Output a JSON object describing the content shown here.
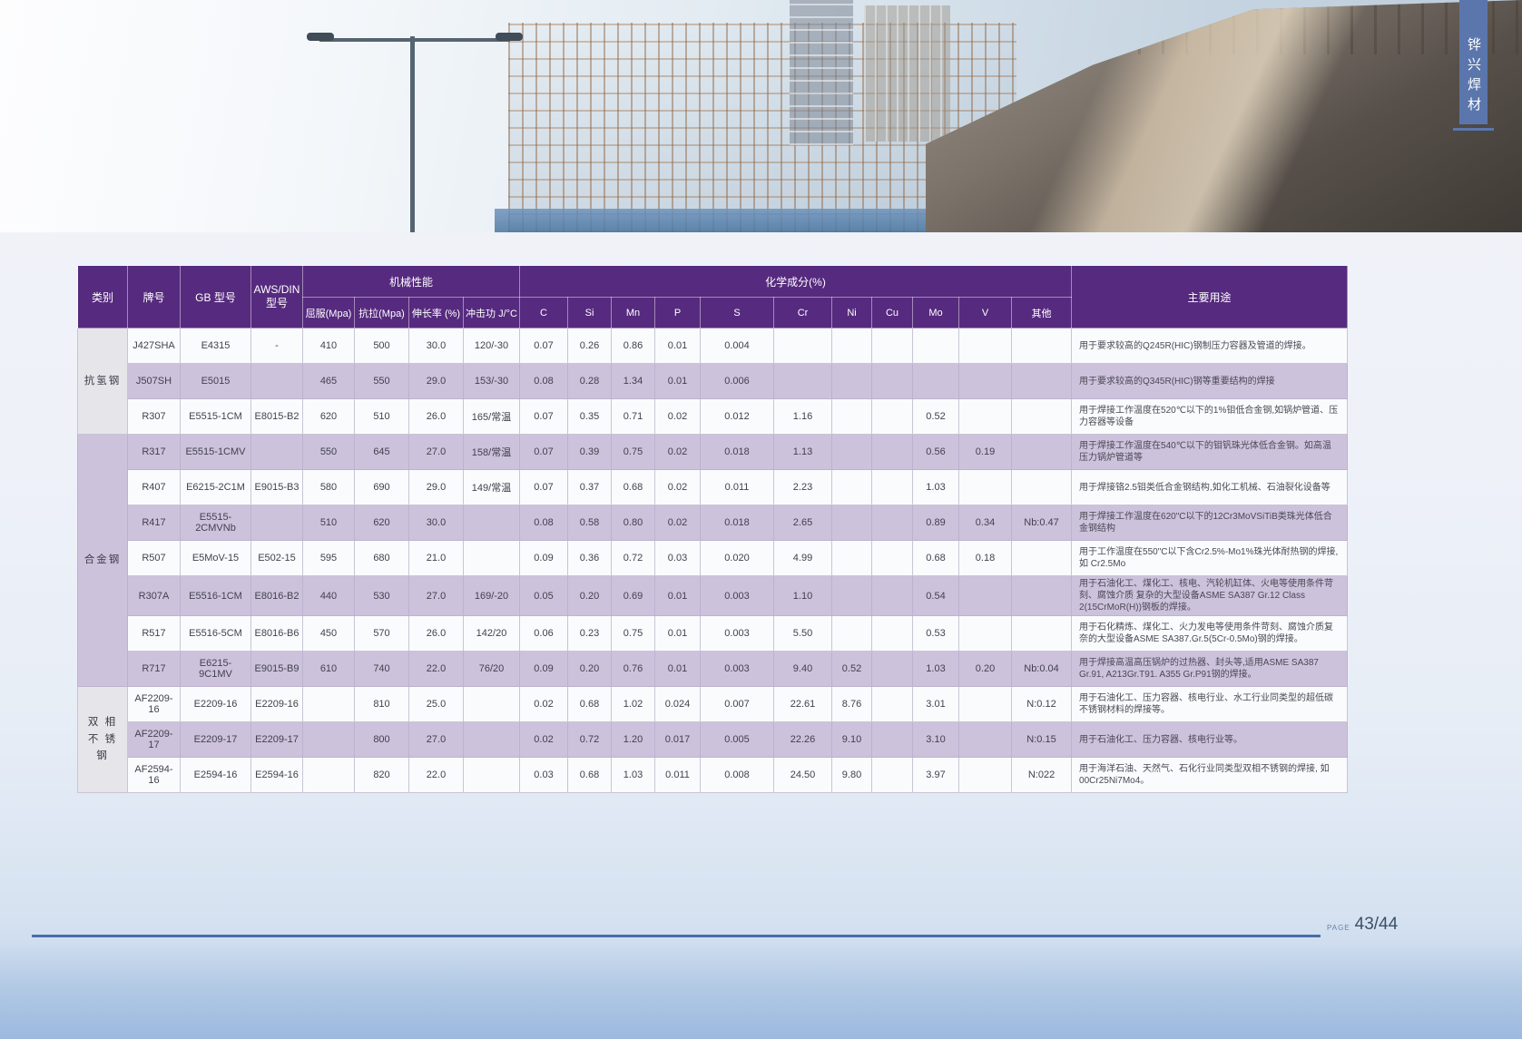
{
  "ribbon": {
    "text": "铧兴焊材"
  },
  "photo": {
    "description": "construction site with scaffolding, street lamp and concrete highway bridge"
  },
  "table": {
    "headers": {
      "category": "类别",
      "brand": "牌号",
      "gb_model": "GB 型号",
      "aws_din": "AWS/DIN\n型号",
      "mechanical": "机械性能",
      "chemical": "化学成分(%)",
      "usage": "主要用途",
      "mech_cols": [
        "屈服(Mpa)",
        "抗拉(Mpa)",
        "伸长率 (%)",
        "冲击功 J/°C"
      ],
      "chem_cols": [
        "C",
        "Si",
        "Mn",
        "P",
        "S",
        "Cr",
        "Ni",
        "Cu",
        "Mo",
        "V",
        "其他"
      ]
    },
    "groups": [
      {
        "category": "抗氢钢",
        "rows": [
          [
            "J427SHA",
            "E4315",
            "-",
            "410",
            "500",
            "30.0",
            "120/-30",
            "0.07",
            "0.26",
            "0.86",
            "0.01",
            "0.004",
            "",
            "",
            "",
            "",
            "",
            "",
            "用于要求较高的Q245R(HIC)钢制压力容器及管道的焊接。"
          ],
          [
            "J507SH",
            "E5015",
            "",
            "465",
            "550",
            "29.0",
            "153/-30",
            "0.08",
            "0.28",
            "1.34",
            "0.01",
            "0.006",
            "",
            "",
            "",
            "",
            "",
            "",
            "用于要求较高的Q345R(HIC)钢等重要结构的焊接"
          ],
          [
            "R307",
            "E5515-1CM",
            "E8015-B2",
            "620",
            "510",
            "26.0",
            "165/常温",
            "0.07",
            "0.35",
            "0.71",
            "0.02",
            "0.012",
            "1.16",
            "",
            "",
            "0.52",
            "",
            "",
            "用于焊接工作温度在520℃以下的1%钼低合金钢,如锅炉管道、压力容器等设备"
          ]
        ]
      },
      {
        "category": "合金钢",
        "rows": [
          [
            "R317",
            "E5515-1CMV",
            "",
            "550",
            "645",
            "27.0",
            "158/常温",
            "0.07",
            "0.39",
            "0.75",
            "0.02",
            "0.018",
            "1.13",
            "",
            "",
            "0.56",
            "0.19",
            "",
            "用于焊接工作温度在540℃以下的钼钒珠光体低合金钢。如高温压力锅炉管道等"
          ],
          [
            "R407",
            "E6215-2C1M",
            "E9015-B3",
            "580",
            "690",
            "29.0",
            "149/常温",
            "0.07",
            "0.37",
            "0.68",
            "0.02",
            "0.011",
            "2.23",
            "",
            "",
            "1.03",
            "",
            "",
            "用于焊接铬2.5钼类低合金钢结构,如化工机械、石油裂化设备等"
          ],
          [
            "R417",
            "E5515-2CMVNb",
            "",
            "510",
            "620",
            "30.0",
            "",
            "0.08",
            "0.58",
            "0.80",
            "0.02",
            "0.018",
            "2.65",
            "",
            "",
            "0.89",
            "0.34",
            "Nb:0.47",
            "用于焊接工作温度在620\"C以下的12Cr3MoVSiTiB类珠光体低合金钢结构"
          ],
          [
            "R507",
            "E5MoV-15",
            "E502-15",
            "595",
            "680",
            "21.0",
            "",
            "0.09",
            "0.36",
            "0.72",
            "0.03",
            "0.020",
            "4.99",
            "",
            "",
            "0.68",
            "0.18",
            "",
            "用于工作温度在550\"C以下含Cr2.5%-Mo1%珠光体耐热钢的焊接,如 Cr2.5Mo"
          ],
          [
            "R307A",
            "E5516-1CM",
            "E8016-B2",
            "440",
            "530",
            "27.0",
            "169/-20",
            "0.05",
            "0.20",
            "0.69",
            "0.01",
            "0.003",
            "1.10",
            "",
            "",
            "0.54",
            "",
            "",
            "用于石油化工、煤化工、核电、汽轮机缸体、火电等使用条件苛刻、腐蚀介质 复杂的大型设备ASME SA387 Gr.12 Class 2(15CrMoR(H))钢板的焊接。"
          ],
          [
            "R517",
            "E5516-5CM",
            "E8016-B6",
            "450",
            "570",
            "26.0",
            "142/20",
            "0.06",
            "0.23",
            "0.75",
            "0.01",
            "0.003",
            "5.50",
            "",
            "",
            "0.53",
            "",
            "",
            "用于石化精炼、煤化工、火力发电等使用条件苛刻、腐蚀介质复奈的大型设备ASME SA387.Gr.5(5Cr-0.5Mo)钢的焊接。"
          ],
          [
            "R717",
            "E6215-9C1MV",
            "E9015-B9",
            "610",
            "740",
            "22.0",
            "76/20",
            "0.09",
            "0.20",
            "0.76",
            "0.01",
            "0.003",
            "9.40",
            "0.52",
            "",
            "1.03",
            "0.20",
            "Nb:0.04",
            "用于焊接高温高压锅炉的过热器、封头等,适用ASME SA387 Gr.91, A213Gr.T91. A355 Gr.P91钢的焊接。"
          ]
        ]
      },
      {
        "category": "双 相\n不 锈 钢",
        "rows": [
          [
            "AF2209-16",
            "E2209-16",
            "E2209-16",
            "",
            "810",
            "25.0",
            "",
            "0.02",
            "0.68",
            "1.02",
            "0.024",
            "0.007",
            "22.61",
            "8.76",
            "",
            "3.01",
            "",
            "N:0.12",
            "用于石油化工、压力容器、核电行业、水工行业同类型的超低碳不锈钢材料的焊接等。"
          ],
          [
            "AF2209-17",
            "E2209-17",
            "E2209-17",
            "",
            "800",
            "27.0",
            "",
            "0.02",
            "0.72",
            "1.20",
            "0.017",
            "0.005",
            "22.26",
            "9.10",
            "",
            "3.10",
            "",
            "N:0.15",
            "用于石油化工、压力容器、核电行业等。"
          ],
          [
            "AF2594-16",
            "E2594-16",
            "E2594-16",
            "",
            "820",
            "22.0",
            "",
            "0.03",
            "0.68",
            "1.03",
            "0.011",
            "0.008",
            "24.50",
            "9.80",
            "",
            "3.97",
            "",
            "N:022",
            "用于海洋石油、天然气、石化行业同类型双相不锈钢的焊接, 如 00Cr25Ni7Mo4。"
          ]
        ]
      }
    ]
  },
  "footer": {
    "page_label": "PAGE",
    "page_number": "43/44"
  }
}
